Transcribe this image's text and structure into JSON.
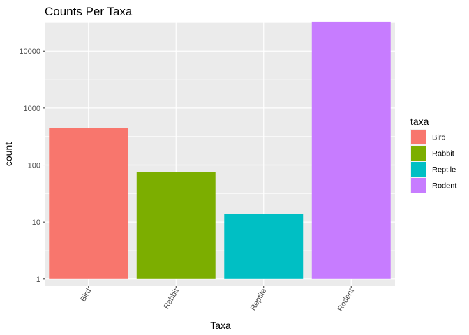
{
  "chart_data": {
    "type": "bar",
    "title": "Counts Per Taxa",
    "xlabel": "Taxa",
    "ylabel": "count",
    "y_scale": "log10",
    "ylim": [
      0.75,
      32000
    ],
    "y_ticks": [
      1,
      10,
      100,
      1000,
      10000
    ],
    "y_tick_labels": [
      "1",
      "10",
      "100",
      "1000",
      "10000"
    ],
    "categories": [
      "Bird",
      "Rabbit",
      "Reptile",
      "Rodent"
    ],
    "values": [
      450,
      75,
      14,
      33000
    ],
    "colors": [
      "#F8766D",
      "#7CAE00",
      "#00BFC4",
      "#C77CFF"
    ],
    "legend": {
      "title": "taxa",
      "placement": "right",
      "entries": [
        "Bird",
        "Rabbit",
        "Reptile",
        "Rodent"
      ]
    },
    "grid": true,
    "x_tick_rotation_deg": -60
  }
}
